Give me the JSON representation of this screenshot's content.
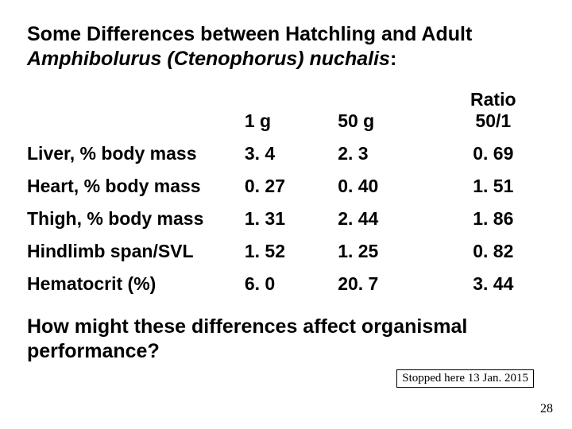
{
  "title": {
    "line1": "Some Differences between Hatchling and Adult",
    "line2_italic": "Amphibolurus (Ctenophorus) nuchalis",
    "line2_colon": ":"
  },
  "table": {
    "columns": [
      "",
      "1 g",
      "50 g",
      "Ratio\n50/1"
    ],
    "rows": [
      [
        "Liver, % body mass",
        "3. 4",
        "2. 3",
        "0. 69"
      ],
      [
        "Heart, % body mass",
        "0. 27",
        "0. 40",
        "1. 51"
      ],
      [
        "Thigh, % body mass",
        "1. 31",
        "2. 44",
        "1. 86"
      ],
      [
        "Hindlimb span/SVL",
        "1. 52",
        "1. 25",
        "0. 82"
      ],
      [
        "Hematocrit (%)",
        "6. 0",
        "20. 7",
        "3. 44"
      ]
    ],
    "header_fontsize": 23,
    "cell_fontsize": 23,
    "font_weight": "bold",
    "text_color": "#000000",
    "background_color": "#ffffff"
  },
  "question_line1": "How might these differences affect organismal",
  "question_line2": "performance?",
  "stopped_note": "Stopped here 13 Jan. 2015",
  "page_number": "28",
  "colors": {
    "background": "#ffffff",
    "text": "#000000",
    "box_border": "#000000"
  }
}
